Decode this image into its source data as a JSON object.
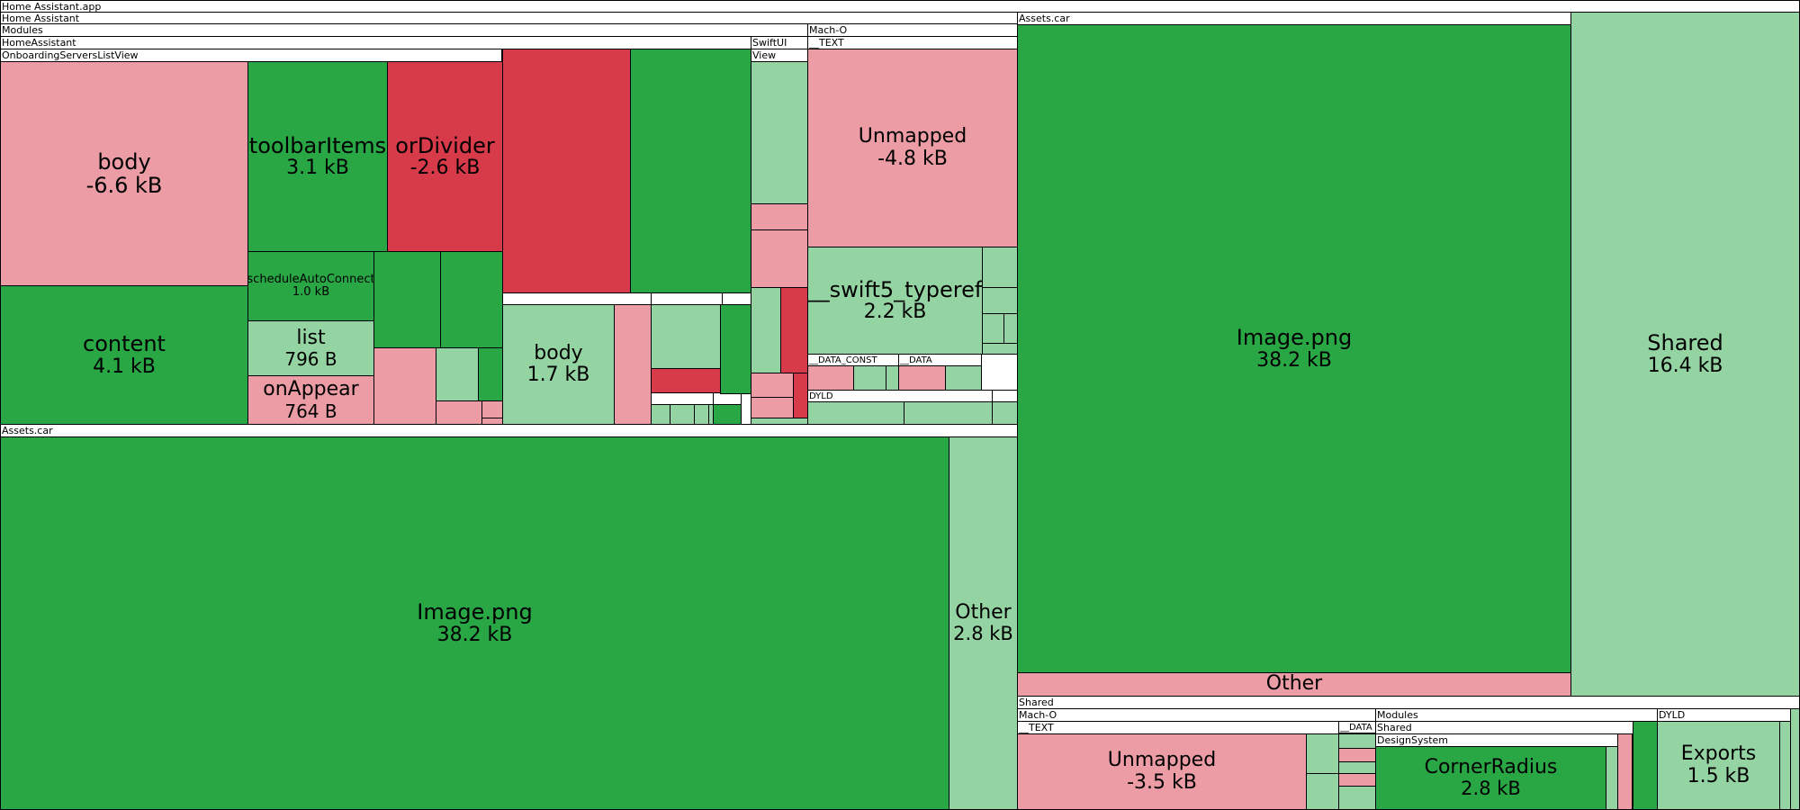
{
  "app_title": "Home Assistant.app",
  "colors": {
    "decrease_strong": "#D73B49",
    "decrease_light": "#EB9CA4",
    "increase_strong": "#29A745",
    "increase_light": "#94D4A2",
    "header": "#FFFFFF",
    "border": "#000000"
  },
  "chart_data": {
    "type": "treemap",
    "title": "Home Assistant.app",
    "legend": "none",
    "nodes": [
      {
        "id": "n0",
        "label": "Home Assistant",
        "kind": "group"
      },
      {
        "id": "n1",
        "label": "Modules",
        "kind": "group"
      },
      {
        "id": "n2",
        "label": "HomeAssistant",
        "kind": "group"
      },
      {
        "id": "n3",
        "label": "OnboardingServersListView",
        "kind": "group"
      },
      {
        "id": "n4",
        "label": "body",
        "value": "-6.6 kB",
        "size_kb": 6.6,
        "change": "decrease",
        "intensity": "light"
      },
      {
        "id": "n5",
        "label": "content",
        "value": "4.1 kB",
        "size_kb": 4.1,
        "change": "increase",
        "intensity": "strong"
      },
      {
        "id": "n6",
        "label": "toolbarItems",
        "value": "3.1 kB",
        "size_kb": 3.1,
        "change": "increase",
        "intensity": "strong"
      },
      {
        "id": "n7",
        "label": "orDivider",
        "value": "-2.6 kB",
        "size_kb": 2.6,
        "change": "decrease",
        "intensity": "strong"
      },
      {
        "id": "n8",
        "label": "scheduleAutoConnect",
        "value": "1.0 kB",
        "size_kb": 1.0,
        "change": "increase",
        "intensity": "strong"
      },
      {
        "id": "n9",
        "label": "list",
        "value": "796 B",
        "size_kb": 0.796,
        "change": "increase",
        "intensity": "light"
      },
      {
        "id": "n10",
        "label": "onAppear",
        "value": "764 B",
        "size_kb": 0.764,
        "change": "decrease",
        "intensity": "light"
      },
      {
        "id": "n11",
        "label": "",
        "change": "increase",
        "intensity": "strong"
      },
      {
        "id": "n12",
        "label": "",
        "change": "increase",
        "intensity": "strong"
      },
      {
        "id": "n13",
        "label": "",
        "change": "decrease",
        "intensity": "light"
      },
      {
        "id": "n14",
        "label": "",
        "change": "increase",
        "intensity": "light"
      },
      {
        "id": "n15",
        "label": "",
        "change": "increase",
        "intensity": "strong"
      },
      {
        "id": "n16",
        "label": "",
        "change": "decrease",
        "intensity": "light"
      },
      {
        "id": "n17",
        "label": "",
        "change": "decrease",
        "intensity": "light"
      },
      {
        "id": "n18",
        "label": "",
        "change": "decrease",
        "intensity": "light"
      },
      {
        "id": "n19",
        "label": "",
        "change": "decrease",
        "intensity": "strong"
      },
      {
        "id": "n20",
        "label": "",
        "change": "increase",
        "intensity": "strong"
      },
      {
        "id": "n21",
        "label": "",
        "kind": "group"
      },
      {
        "id": "n22",
        "label": "",
        "kind": "group"
      },
      {
        "id": "n23",
        "label": "body",
        "value": "1.7 kB",
        "size_kb": 1.7,
        "change": "increase",
        "intensity": "light"
      },
      {
        "id": "n24",
        "label": "",
        "change": "decrease",
        "intensity": "light"
      },
      {
        "id": "n25",
        "label": "",
        "change": "increase",
        "intensity": "light"
      },
      {
        "id": "n26",
        "label": "",
        "change": "decrease",
        "intensity": "strong"
      },
      {
        "id": "n27",
        "label": "",
        "kind": "group"
      },
      {
        "id": "n28",
        "label": "",
        "kind": "group"
      },
      {
        "id": "n29",
        "label": "",
        "change": "increase",
        "intensity": "light"
      },
      {
        "id": "n30",
        "label": "",
        "change": "increase",
        "intensity": "light"
      },
      {
        "id": "n31",
        "label": "",
        "change": "increase",
        "intensity": "light"
      },
      {
        "id": "n32",
        "label": "",
        "change": "increase",
        "intensity": "light"
      },
      {
        "id": "n33",
        "label": "",
        "change": "increase",
        "intensity": "strong"
      },
      {
        "id": "n34",
        "label": "",
        "change": "increase",
        "intensity": "strong"
      },
      {
        "id": "n35",
        "label": "SwiftUI",
        "kind": "group"
      },
      {
        "id": "n36",
        "label": "View",
        "kind": "group"
      },
      {
        "id": "n37",
        "label": "",
        "change": "increase",
        "intensity": "light"
      },
      {
        "id": "n38",
        "label": "",
        "change": "decrease",
        "intensity": "light"
      },
      {
        "id": "n39",
        "label": "",
        "change": "decrease",
        "intensity": "light"
      },
      {
        "id": "n40",
        "label": "",
        "change": "increase",
        "intensity": "light"
      },
      {
        "id": "n41",
        "label": "",
        "change": "decrease",
        "intensity": "strong"
      },
      {
        "id": "n42",
        "label": "",
        "change": "decrease",
        "intensity": "light"
      },
      {
        "id": "n43",
        "label": "",
        "change": "decrease",
        "intensity": "light"
      },
      {
        "id": "n44",
        "label": "",
        "change": "decrease",
        "intensity": "strong"
      },
      {
        "id": "n45",
        "label": "",
        "change": "increase",
        "intensity": "light"
      },
      {
        "id": "n46",
        "label": "Mach-O",
        "kind": "group"
      },
      {
        "id": "n47",
        "label": "__TEXT",
        "kind": "group"
      },
      {
        "id": "n48",
        "label": "Unmapped",
        "value": "-4.8 kB",
        "size_kb": 4.8,
        "change": "decrease",
        "intensity": "light"
      },
      {
        "id": "n49",
        "label": "__swift5_typeref",
        "value": "2.2 kB",
        "size_kb": 2.2,
        "change": "increase",
        "intensity": "light"
      },
      {
        "id": "n50",
        "label": "",
        "change": "increase",
        "intensity": "light"
      },
      {
        "id": "n51",
        "label": "",
        "change": "increase",
        "intensity": "light"
      },
      {
        "id": "n52",
        "label": "",
        "change": "increase",
        "intensity": "light"
      },
      {
        "id": "n53",
        "label": "",
        "change": "increase",
        "intensity": "light"
      },
      {
        "id": "n54",
        "label": "",
        "change": "increase",
        "intensity": "light"
      },
      {
        "id": "n55",
        "label": "__DATA_CONST",
        "kind": "group"
      },
      {
        "id": "n56",
        "label": "",
        "change": "decrease",
        "intensity": "light"
      },
      {
        "id": "n57",
        "label": "",
        "change": "increase",
        "intensity": "light"
      },
      {
        "id": "n58",
        "label": "",
        "change": "increase",
        "intensity": "light"
      },
      {
        "id": "n59",
        "label": "__DATA",
        "kind": "group"
      },
      {
        "id": "n60",
        "label": "",
        "change": "decrease",
        "intensity": "light"
      },
      {
        "id": "n61",
        "label": "",
        "change": "increase",
        "intensity": "light"
      },
      {
        "id": "n62",
        "label": "DYLD",
        "kind": "group"
      },
      {
        "id": "n63",
        "label": "",
        "change": "increase",
        "intensity": "light"
      },
      {
        "id": "n64",
        "label": "",
        "change": "increase",
        "intensity": "light"
      },
      {
        "id": "n65",
        "label": "",
        "kind": "group"
      },
      {
        "id": "n66",
        "label": "",
        "change": "increase",
        "intensity": "light"
      },
      {
        "id": "n67",
        "label": "Assets.car",
        "kind": "group"
      },
      {
        "id": "n68",
        "label": "Image.png",
        "value": "38.2 kB",
        "size_kb": 38.2,
        "change": "increase",
        "intensity": "strong"
      },
      {
        "id": "n69",
        "label": "Other",
        "value": "2.8 kB",
        "size_kb": 2.8,
        "change": "increase",
        "intensity": "light"
      },
      {
        "id": "n70",
        "label": "Assets.car",
        "kind": "group"
      },
      {
        "id": "n71",
        "label": "Image.png",
        "value": "38.2 kB",
        "size_kb": 38.2,
        "change": "increase",
        "intensity": "strong"
      },
      {
        "id": "n72",
        "label": "Other",
        "change": "decrease",
        "intensity": "light"
      },
      {
        "id": "n73",
        "label": "Shared",
        "value": "16.4 kB",
        "size_kb": 16.4,
        "change": "increase",
        "intensity": "light"
      },
      {
        "id": "n74",
        "label": "Shared",
        "kind": "group"
      },
      {
        "id": "n75",
        "label": "Mach-O",
        "kind": "group"
      },
      {
        "id": "n76",
        "label": "__TEXT",
        "kind": "group"
      },
      {
        "id": "n77",
        "label": "Unmapped",
        "value": "-3.5 kB",
        "size_kb": 3.5,
        "change": "decrease",
        "intensity": "light"
      },
      {
        "id": "n78",
        "label": "",
        "change": "increase",
        "intensity": "light"
      },
      {
        "id": "n79",
        "label": "",
        "change": "increase",
        "intensity": "light"
      },
      {
        "id": "n80",
        "label": "",
        "change": "increase",
        "intensity": "light"
      },
      {
        "id": "n81",
        "label": "__DATA",
        "kind": "group"
      },
      {
        "id": "n82",
        "label": "",
        "change": "increase",
        "intensity": "light"
      },
      {
        "id": "n83",
        "label": "",
        "change": "decrease",
        "intensity": "light"
      },
      {
        "id": "n84",
        "label": "",
        "change": "increase",
        "intensity": "light"
      },
      {
        "id": "n85",
        "label": "",
        "change": "decrease",
        "intensity": "light"
      },
      {
        "id": "n86",
        "label": "",
        "change": "increase",
        "intensity": "light"
      },
      {
        "id": "n87",
        "label": "Modules",
        "kind": "group"
      },
      {
        "id": "n88",
        "label": "Shared",
        "kind": "group"
      },
      {
        "id": "n89",
        "label": "DesignSystem",
        "kind": "group"
      },
      {
        "id": "n90",
        "label": "CornerRadius",
        "value": "2.8 kB",
        "size_kb": 2.8,
        "change": "increase",
        "intensity": "strong"
      },
      {
        "id": "n91",
        "label": "",
        "change": "increase",
        "intensity": "light"
      },
      {
        "id": "n92",
        "label": "",
        "change": "decrease",
        "intensity": "light"
      },
      {
        "id": "n93",
        "label": "",
        "change": "increase",
        "intensity": "strong"
      },
      {
        "id": "n94",
        "label": "DYLD",
        "kind": "group"
      },
      {
        "id": "n95",
        "label": "Exports",
        "value": "1.5 kB",
        "size_kb": 1.5,
        "change": "increase",
        "intensity": "light"
      },
      {
        "id": "n96",
        "label": "",
        "change": "increase",
        "intensity": "light"
      },
      {
        "id": "n97",
        "label": "",
        "change": "increase",
        "intensity": "light"
      }
    ]
  }
}
